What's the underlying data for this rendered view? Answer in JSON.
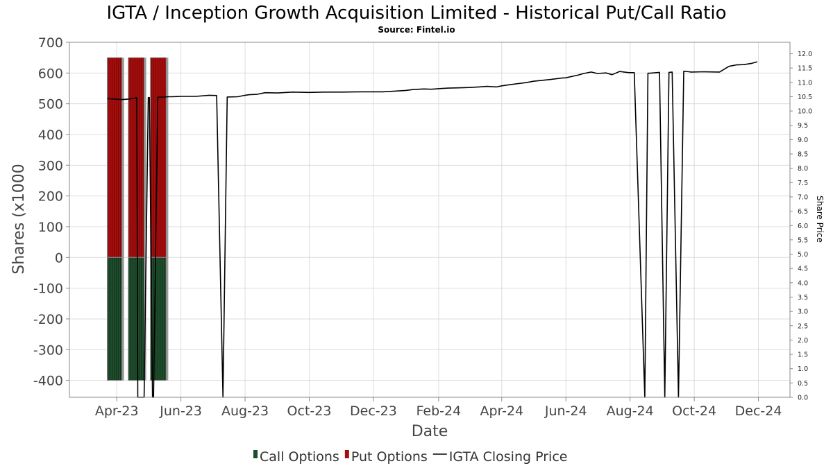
{
  "chart_data": {
    "type": "bar",
    "title": "IGTA / Inception Growth Acquisition Limited - Historical Put/Call Ratio",
    "subtitle": "Source: Fintel.io",
    "xlabel": "Date",
    "ylabel": "Shares (x1000",
    "ylabel_right": "Share Price",
    "x_range": [
      "2023-02-15",
      "2024-12-31"
    ],
    "ylim": [
      -455,
      700
    ],
    "ylim_right": [
      0,
      12.4
    ],
    "left_ticks": [
      "700",
      "600",
      "500",
      "400",
      "300",
      "200",
      "100",
      "0",
      "-100",
      "-200",
      "-300",
      "-400"
    ],
    "left_tick_values": [
      700,
      600,
      500,
      400,
      300,
      200,
      100,
      0,
      -100,
      -200,
      -300,
      -400
    ],
    "right_ticks": [
      "0.0",
      "0.5",
      "1.0",
      "1.5",
      "2.0",
      "2.5",
      "3.0",
      "3.5",
      "4.0",
      "4.5",
      "5.0",
      "5.5",
      "6.0",
      "6.5",
      "7.0",
      "7.5",
      "8.0",
      "8.5",
      "9.0",
      "9.5",
      "10.0",
      "10.5",
      "11.0",
      "11.5",
      "12.0"
    ],
    "right_tick_values": [
      0,
      0.5,
      1,
      1.5,
      2,
      2.5,
      3,
      3.5,
      4,
      4.5,
      5,
      5.5,
      6,
      6.5,
      7,
      7.5,
      8,
      8.5,
      9,
      9.5,
      10,
      10.5,
      11,
      11.5,
      12
    ],
    "x_ticks": [
      {
        "label": "Apr-23",
        "date": "2023-04-01"
      },
      {
        "label": "Jun-23",
        "date": "2023-06-01"
      },
      {
        "label": "Aug-23",
        "date": "2023-08-01"
      },
      {
        "label": "Oct-23",
        "date": "2023-10-01"
      },
      {
        "label": "Dec-23",
        "date": "2023-12-01"
      },
      {
        "label": "Feb-24",
        "date": "2024-02-01"
      },
      {
        "label": "Apr-24",
        "date": "2024-04-01"
      },
      {
        "label": "Jun-24",
        "date": "2024-06-01"
      },
      {
        "label": "Aug-24",
        "date": "2024-08-01"
      },
      {
        "label": "Oct-24",
        "date": "2024-10-01"
      },
      {
        "label": "Dec-24",
        "date": "2024-12-01"
      }
    ],
    "bars": {
      "start_dates": [
        "2023-03-23",
        "2023-04-12",
        "2023-05-03"
      ],
      "end_dates": [
        "2023-04-06",
        "2023-04-27",
        "2023-05-18"
      ],
      "put_options": [
        650,
        650,
        650
      ],
      "call_options": [
        -400,
        -400,
        -400
      ]
    },
    "series": [
      {
        "name": "IGTA Closing Price",
        "axis": "right",
        "x": [
          "2023-03-23",
          "2023-04-06",
          "2023-04-13",
          "2023-04-20",
          "2023-04-21",
          "2023-04-27",
          "2023-05-01",
          "2023-05-02",
          "2023-05-05",
          "2023-05-06",
          "2023-05-10",
          "2023-05-16",
          "2023-05-20",
          "2023-05-24",
          "2023-06-01",
          "2023-06-15",
          "2023-06-28",
          "2023-07-05",
          "2023-07-11",
          "2023-07-15",
          "2023-07-25",
          "2023-08-01",
          "2023-08-05",
          "2023-08-12",
          "2023-08-20",
          "2023-09-01",
          "2023-09-15",
          "2023-10-01",
          "2023-10-15",
          "2023-11-01",
          "2023-11-20",
          "2023-12-10",
          "2023-12-20",
          "2024-01-01",
          "2024-01-08",
          "2024-01-18",
          "2024-01-25",
          "2024-02-01",
          "2024-02-10",
          "2024-02-20",
          "2024-03-01",
          "2024-03-10",
          "2024-03-18",
          "2024-03-27",
          "2024-04-01",
          "2024-04-09",
          "2024-04-17",
          "2024-04-24",
          "2024-05-01",
          "2024-05-09",
          "2024-05-17",
          "2024-05-28",
          "2024-06-01",
          "2024-06-13",
          "2024-06-18",
          "2024-06-25",
          "2024-07-01",
          "2024-07-09",
          "2024-07-15",
          "2024-07-22",
          "2024-07-31",
          "2024-08-05",
          "2024-08-15",
          "2024-08-18",
          "2024-08-20",
          "2024-08-29",
          "2024-09-03",
          "2024-09-07",
          "2024-09-10",
          "2024-09-16",
          "2024-09-21",
          "2024-09-26",
          "2024-09-28",
          "2024-10-10",
          "2024-10-25",
          "2024-11-03",
          "2024-11-10",
          "2024-11-17",
          "2024-11-24",
          "2024-11-30"
        ],
        "values": [
          10.43,
          10.4,
          10.42,
          10.46,
          0,
          0,
          10.47,
          10.47,
          0,
          0,
          10.48,
          10.49,
          10.5,
          10.5,
          10.51,
          10.51,
          10.55,
          10.54,
          0,
          10.49,
          10.5,
          10.55,
          10.57,
          10.58,
          10.64,
          10.63,
          10.66,
          10.65,
          10.66,
          10.66,
          10.67,
          10.67,
          10.69,
          10.72,
          10.75,
          10.77,
          10.76,
          10.78,
          10.8,
          10.81,
          10.82,
          10.84,
          10.86,
          10.84,
          10.88,
          10.92,
          10.96,
          10.99,
          11.04,
          11.07,
          11.1,
          11.15,
          11.16,
          11.26,
          11.31,
          11.36,
          11.31,
          11.33,
          11.27,
          11.38,
          11.34,
          11.34,
          0,
          11.32,
          11.32,
          11.35,
          0,
          11.35,
          11.36,
          0,
          11.39,
          11.37,
          11.36,
          11.37,
          11.36,
          11.56,
          11.61,
          11.62,
          11.66,
          11.72
        ]
      }
    ],
    "legend": {
      "position": "bottom-center",
      "items": [
        {
          "label": "Call Options",
          "color": "#1f4d2b"
        },
        {
          "label": "Put Options",
          "color": "#a50d0d"
        },
        {
          "label": "IGTA Closing Price",
          "color": "#000000"
        }
      ]
    },
    "colors": {
      "call": "#1f4d2b",
      "put": "#a50d0d",
      "price": "#000000",
      "bar_border": "#8a8a8a",
      "grid": "#dcdcdc"
    },
    "grid": true
  }
}
